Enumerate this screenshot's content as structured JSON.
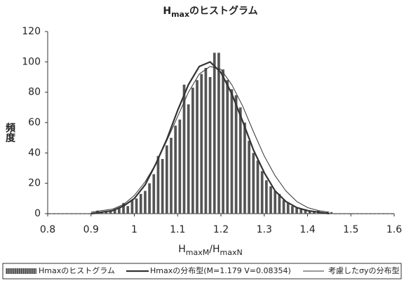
{
  "chart_data": {
    "type": "histogram",
    "title": [
      "H",
      "max",
      "のヒストグラム"
    ],
    "xlabel": [
      "H",
      "maxM",
      "/",
      "H",
      "maxN"
    ],
    "ylabel": "頻度",
    "name": "Hmaxのヒストグラム",
    "color": "#555555",
    "bins": [
      0.8,
      0.81,
      0.82,
      0.83,
      0.84,
      0.85,
      0.86,
      0.87,
      0.88,
      0.89,
      0.9,
      0.91,
      0.92,
      0.93,
      0.94,
      0.95,
      0.96,
      0.97,
      0.98,
      0.99,
      1.0,
      1.01,
      1.02,
      1.03,
      1.04,
      1.05,
      1.06,
      1.07,
      1.08,
      1.09,
      1.1,
      1.11,
      1.12,
      1.13,
      1.14,
      1.15,
      1.16,
      1.17,
      1.18,
      1.19,
      1.2,
      1.21,
      1.22,
      1.23,
      1.24,
      1.25,
      1.26,
      1.27,
      1.28,
      1.29,
      1.3,
      1.31,
      1.32,
      1.33,
      1.34,
      1.35,
      1.36,
      1.37,
      1.38,
      1.39,
      1.4,
      1.41,
      1.42,
      1.43,
      1.44,
      1.45,
      1.46,
      1.47,
      1.48,
      1.49,
      1.5,
      1.51,
      1.52,
      1.53,
      1.54,
      1.55,
      1.56,
      1.57,
      1.58,
      1.59,
      1.6
    ],
    "values": [
      0,
      0,
      0,
      0,
      0,
      0,
      0,
      0,
      0,
      0,
      0,
      2,
      1,
      1,
      2,
      3,
      4,
      7,
      5,
      9,
      10,
      13,
      15,
      20,
      26,
      38,
      36,
      45,
      50,
      58,
      62,
      85,
      72,
      83,
      88,
      92,
      96,
      90,
      106,
      106,
      95,
      88,
      82,
      78,
      70,
      60,
      48,
      40,
      35,
      28,
      22,
      18,
      15,
      13,
      9,
      7,
      5,
      4,
      3,
      3,
      2,
      1,
      2,
      1,
      1,
      1,
      0,
      0,
      0,
      0,
      0,
      0,
      0,
      0,
      0,
      0,
      0,
      0,
      0,
      0
    ],
    "series": [
      {
        "name": "Hmaxの分布型(M=1.179 V=0.08354)",
        "color": "#333333",
        "width": 2.2,
        "x": [
          0.9,
          0.925,
          0.95,
          0.975,
          1.0,
          1.025,
          1.05,
          1.075,
          1.1,
          1.125,
          1.15,
          1.175,
          1.2,
          1.225,
          1.25,
          1.275,
          1.3,
          1.325,
          1.35,
          1.375,
          1.4,
          1.425,
          1.45
        ],
        "values": [
          0,
          1,
          2,
          5,
          10,
          19,
          33,
          49,
          68,
          85,
          97,
          100,
          93,
          79,
          61,
          42,
          27,
          15,
          8,
          4,
          2,
          1,
          0
        ]
      },
      {
        "name": "考慮したσyの分布型",
        "color": "#333333",
        "width": 1,
        "x": [
          0.9,
          0.925,
          0.95,
          0.975,
          1.0,
          1.025,
          1.05,
          1.075,
          1.1,
          1.125,
          1.15,
          1.175,
          1.2,
          1.225,
          1.25,
          1.275,
          1.3,
          1.325,
          1.35,
          1.375,
          1.4,
          1.425,
          1.45
        ],
        "values": [
          1,
          2,
          3,
          6,
          12,
          21,
          33,
          48,
          64,
          80,
          92,
          97,
          95,
          85,
          71,
          54,
          38,
          25,
          15,
          8,
          4,
          2,
          1
        ]
      }
    ],
    "xlim": [
      0.8,
      1.6
    ],
    "xticks": [
      0.8,
      0.9,
      1,
      1.1,
      1.2,
      1.3,
      1.4,
      1.5,
      1.6
    ],
    "ylim": [
      0,
      120
    ],
    "yticks": [
      0,
      20,
      40,
      60,
      80,
      100,
      120
    ]
  }
}
